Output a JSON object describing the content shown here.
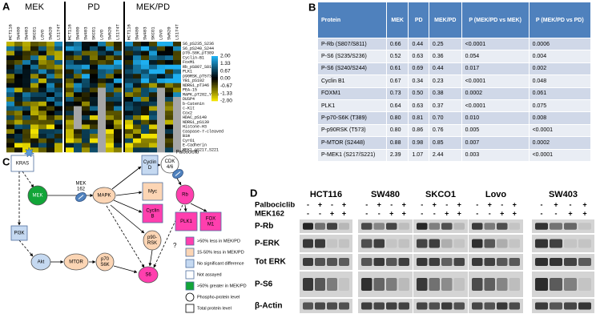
{
  "panel_a": {
    "label": "A",
    "groups": [
      "MEK",
      "PD",
      "MEK/PD"
    ],
    "cell_lines": [
      "HCT116",
      "SW480",
      "SW403",
      "SKCO1",
      "LOVO",
      "SW620",
      "LS174T"
    ],
    "rows": [
      "S6_pS235_S236",
      "S6_pS240_S244",
      "p70-S6K_pT389",
      "Cyclin-B1",
      "FoxM1",
      "Rb_pS807_S811",
      "PLK1",
      "p90RSK_pT573",
      "YB1_pS102",
      "NDRG1_pT346",
      "PEA-15",
      "MAPK_pT202_Y204",
      "DUSP4",
      "b-Catenin",
      "c-Kit",
      "Cox2",
      "HDAC_pS140",
      "NDRG1_pS139",
      "Histone-H3",
      "Caspase-7-cleaved",
      "Bim",
      "Cyr61",
      "E-Cadherin",
      "MEK1_pS217_S221"
    ],
    "scale": [
      "2.00",
      "1.33",
      "0.67",
      "0.00",
      "-0.67",
      "-1.33",
      "-2.00"
    ]
  },
  "panel_b": {
    "label": "B",
    "table": {
      "header": [
        "Protein",
        "MEK",
        "PD",
        "MEK/PD",
        "P (MEK/PD vs MEK)",
        "P (MEK/PD vs PD)"
      ],
      "rows": [
        [
          "P-Rb (S807/S811)",
          "0.66",
          "0.44",
          "0.25",
          "<0.0001",
          "0.0006"
        ],
        [
          "P-S6 (S235/S236)",
          "0.52",
          "0.63",
          "0.36",
          "0.054",
          "0.004"
        ],
        [
          "P-S6 (S240/S244)",
          "0.61",
          "0.69",
          "0.44",
          "0.017",
          "0.002"
        ],
        [
          "Cyclin B1",
          "0.67",
          "0.34",
          "0.23",
          "<0.0001",
          "0.048"
        ],
        [
          "FOXM1",
          "0.73",
          "0.50",
          "0.38",
          "0.0002",
          "0.061"
        ],
        [
          "PLK1",
          "0.64",
          "0.63",
          "0.37",
          "<0.0001",
          "0.075"
        ],
        [
          "P-p70-S6K (T389)",
          "0.80",
          "0.81",
          "0.70",
          "0.010",
          "0.008"
        ],
        [
          "P-p90RSK (T573)",
          "0.80",
          "0.86",
          "0.76",
          "0.005",
          "<0.0001"
        ],
        [
          "P-MTOR (S2448)",
          "0.88",
          "0.98",
          "0.85",
          "0.007",
          "0.0002"
        ],
        [
          "P-MEK1 (S217/S221)",
          "2.39",
          "1.07",
          "2.44",
          "0.003",
          "<0.0001"
        ]
      ]
    }
  },
  "panel_c": {
    "label": "C",
    "nodes": {
      "kras": [
        "KRAS"
      ],
      "mek": [
        "MEK"
      ],
      "mek162": [
        "MEK",
        "162"
      ],
      "mapk": [
        "MAPK"
      ],
      "cyclin_d": [
        "Cyclin",
        "D"
      ],
      "cdk46": [
        "CDK",
        "4/6"
      ],
      "palbociclib": [
        "Palbociclib"
      ],
      "myc": [
        "Myc"
      ],
      "cyclin_b": [
        "Cyclin",
        "B"
      ],
      "p90rsk": [
        "p90-",
        "RSK"
      ],
      "rb": [
        "Rb"
      ],
      "plk1": [
        "PLK1"
      ],
      "foxm1": [
        "FOX",
        "M1"
      ],
      "pi3k": [
        "PI3K"
      ],
      "akt": [
        "Akt"
      ],
      "mtor": [
        "MTOR"
      ],
      "p70s6k": [
        "p70",
        "S6K"
      ],
      "s6": [
        "S6"
      ]
    },
    "question": "?",
    "legend": [
      ">50% less in MEK/PD",
      "15-50% less in MEK/PD",
      "No significant difference",
      "Not assayed",
      ">50% greater in MEK/PD",
      "Phospho-protein level",
      "Total protein level"
    ]
  },
  "panel_d": {
    "label": "D",
    "cell_lines": [
      "HCT116",
      "SW480",
      "SKCO1",
      "Lovo",
      "SW403"
    ],
    "treatments": [
      {
        "label": "Palbociclib",
        "signs": [
          "-",
          "+",
          "-",
          "+"
        ]
      },
      {
        "label": "MEK162",
        "signs": [
          "-",
          "-",
          "+",
          "+"
        ]
      }
    ],
    "blots": [
      "P-Rb",
      "P-ERK",
      "Tot ERK",
      "P-S6",
      "β-Actin"
    ]
  }
}
